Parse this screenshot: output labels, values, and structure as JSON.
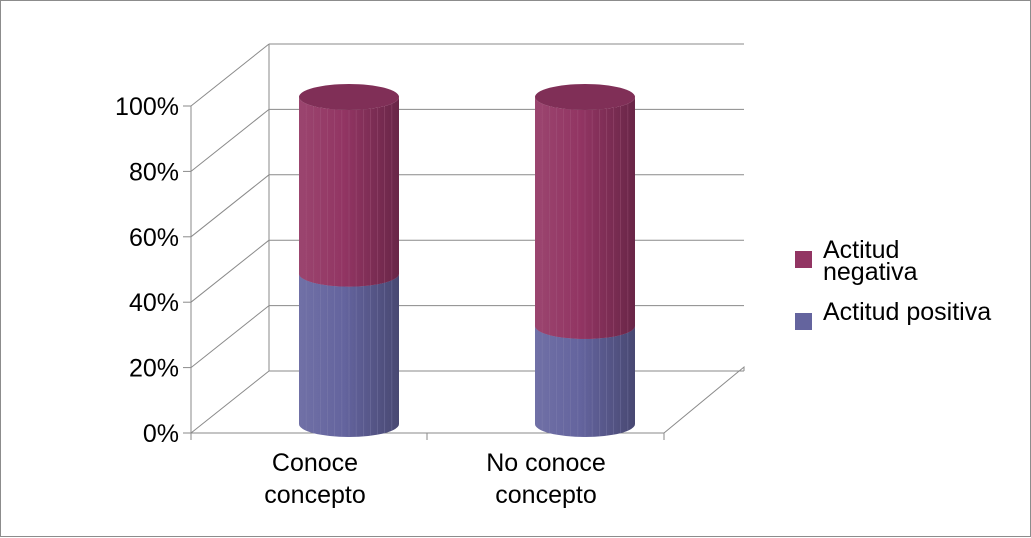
{
  "chart_data": {
    "type": "bar",
    "subtype": "stacked-100-3d-cylinder",
    "categories": [
      "Conoce concepto",
      "No conoce concepto"
    ],
    "category_lines": [
      [
        "Conoce",
        "concepto"
      ],
      [
        "No conoce",
        "concepto"
      ]
    ],
    "series": [
      {
        "name": "Actitud positiva",
        "values": [
          46,
          30
        ],
        "color": "#64649e"
      },
      {
        "name": "Actitud negativa",
        "values": [
          54,
          70
        ],
        "color": "#923563"
      }
    ],
    "yticks": [
      "0%",
      "20%",
      "40%",
      "60%",
      "80%",
      "100%"
    ],
    "ylim": [
      0,
      100
    ],
    "grid": true,
    "legend_position": "right",
    "legend_order": [
      "Actitud negativa",
      "Actitud positiva"
    ]
  },
  "legend": {
    "negative_label": "Actitud negativa",
    "positive_label": "Actitud positiva",
    "negative_color": "#923563",
    "positive_color": "#64649e"
  }
}
